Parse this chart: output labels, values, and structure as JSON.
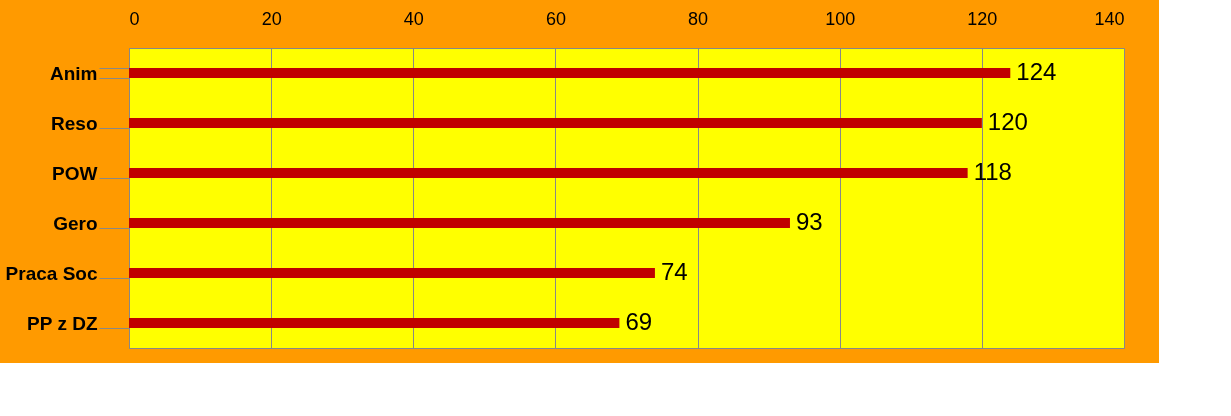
{
  "chart_data": {
    "type": "bar",
    "orientation": "horizontal",
    "categories": [
      "Anim",
      "Reso",
      "POW",
      "Gero",
      "Praca Soc",
      "PP z DZ"
    ],
    "values": [
      124,
      120,
      118,
      93,
      74,
      69
    ],
    "color": "#c00000",
    "xlim": [
      0,
      140
    ],
    "xticks": [
      0,
      20,
      40,
      60,
      80,
      100,
      120,
      140
    ],
    "grid": "x",
    "data_labels": true
  }
}
